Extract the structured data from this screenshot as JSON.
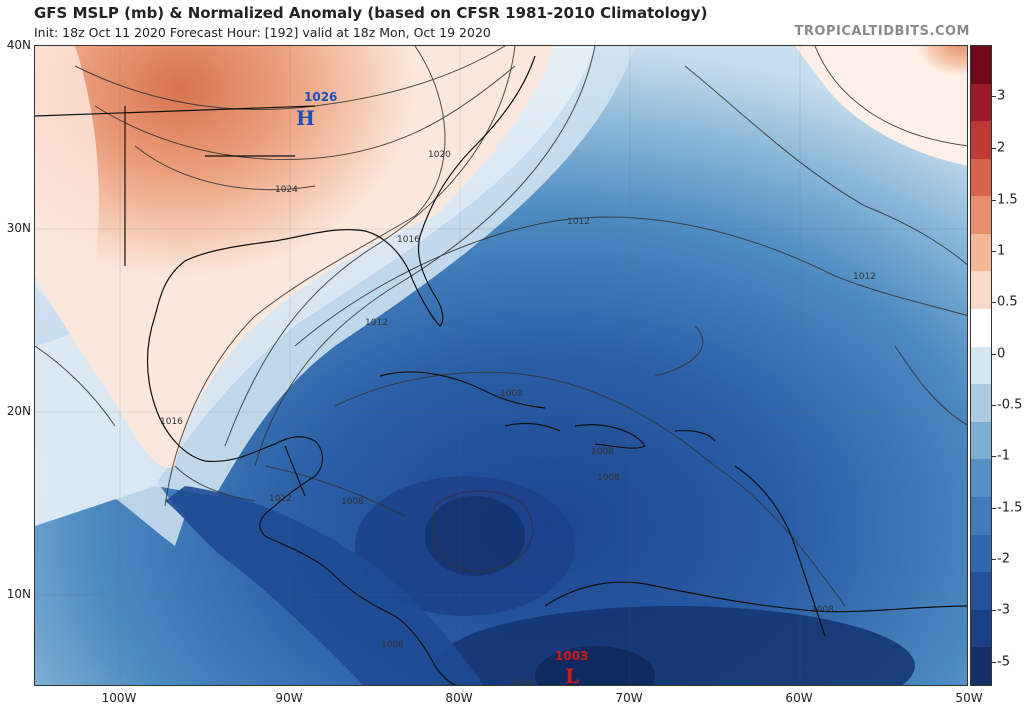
{
  "header": {
    "title": "GFS MSLP (mb) & Normalized Anomaly (based on CFSR 1981-2010 Climatology)",
    "subtitle": "Init: 18z Oct 11 2020   Forecast Hour: [192]   valid at 18z Mon, Oct 19 2020",
    "brand": "TROPICALTIDBITS.COM"
  },
  "map": {
    "lat_labels": [
      "40N",
      "30N",
      "20N",
      "10N"
    ],
    "lon_labels": [
      "100W",
      "90W",
      "80W",
      "70W",
      "60W",
      "50W"
    ],
    "isobar_labels": [
      "1020",
      "1024",
      "1016",
      "1012",
      "1012",
      "1012",
      "1016",
      "1008",
      "1008",
      "1008",
      "1012",
      "1008",
      "1008",
      "1008",
      "1008"
    ],
    "pressure_centers": [
      {
        "type": "H",
        "value": "1026",
        "color": "#1e4fb8"
      },
      {
        "type": "L",
        "value": "1003",
        "color": "#d11a1a"
      }
    ]
  },
  "colorbar": {
    "labels": [
      "3",
      "2",
      "1.5",
      "1",
      "0.5",
      "0",
      "-0.5",
      "-1",
      "-1.5",
      "-2",
      "-3",
      "-5"
    ],
    "colors": [
      "#6e0a1c",
      "#9a1a28",
      "#bd3a36",
      "#d8634c",
      "#e88f6e",
      "#f3b699",
      "#f8d9c8",
      "#ffffff",
      "#d3e5f0",
      "#a9cae1",
      "#7eaed2",
      "#5590c4",
      "#3f7cb9",
      "#2f67aa",
      "#23519a",
      "#1b3f84",
      "#142f6a"
    ]
  }
}
